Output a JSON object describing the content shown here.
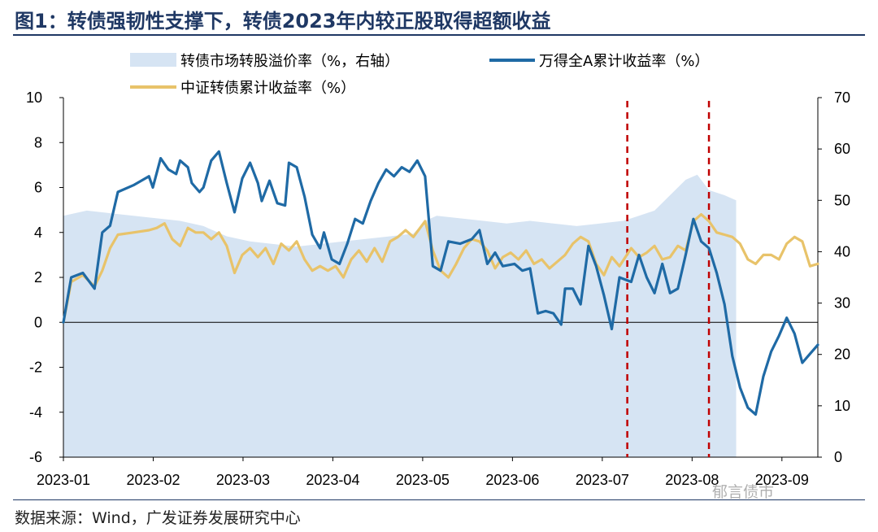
{
  "title": "图1：转债强韧性支撑下，转债2023年内较正股取得超额收益",
  "source": "数据来源：Wind，广发证券发展研究中心",
  "watermark": "郁言债市",
  "colors": {
    "premium": "#d6e4f3",
    "wind_a": "#1f6aa5",
    "csi_cb": "#e8c36a",
    "marker": "#c00000",
    "title": "#1f3864"
  },
  "chart_data": {
    "type": "line",
    "title": "转债强韧性支撑下，转债2023年内较正股取得超额收益",
    "x_tick_labels": [
      "2023-01",
      "2023-02",
      "2023-03",
      "2023-04",
      "2023-05",
      "2023-06",
      "2023-07",
      "2023-08",
      "2023-09"
    ],
    "y_left": {
      "ticks": [
        10,
        8,
        6,
        4,
        2,
        0,
        -2,
        -4,
        -6
      ],
      "ylim": [
        -6,
        10
      ]
    },
    "y_right": {
      "ticks": [
        70,
        60,
        50,
        40,
        30,
        20,
        10,
        0
      ],
      "ylim": [
        0,
        70
      ]
    },
    "vertical_markers_x_index": [
      145,
      166
    ],
    "legend": [
      {
        "label": "转债市场转股溢价率（%，右轴）",
        "series": "premium"
      },
      {
        "label": "万得全A累计收益率（%）",
        "series": "wind_a"
      },
      {
        "label": "中证转债累计收益率（%）",
        "series": "csi_cb"
      }
    ],
    "series": [
      {
        "name": "转债市场转股溢价率（%，右轴）",
        "kind": "area",
        "axis": "right",
        "points": [
          [
            0,
            47
          ],
          [
            6,
            48
          ],
          [
            12,
            47.5
          ],
          [
            18,
            47
          ],
          [
            24,
            46.5
          ],
          [
            30,
            46
          ],
          [
            36,
            45
          ],
          [
            42,
            43
          ],
          [
            48,
            42
          ],
          [
            54,
            41.5
          ],
          [
            60,
            41
          ],
          [
            66,
            41.5
          ],
          [
            72,
            42
          ],
          [
            78,
            42.5
          ],
          [
            84,
            43
          ],
          [
            90,
            43.5
          ],
          [
            93,
            46
          ],
          [
            96,
            47
          ],
          [
            102,
            46.5
          ],
          [
            108,
            46
          ],
          [
            114,
            45.5
          ],
          [
            120,
            46
          ],
          [
            126,
            45.5
          ],
          [
            132,
            45
          ],
          [
            138,
            45.5
          ],
          [
            144,
            46
          ],
          [
            148,
            47
          ],
          [
            152,
            48
          ],
          [
            156,
            51
          ],
          [
            160,
            54
          ],
          [
            163,
            55
          ],
          [
            166,
            52
          ],
          [
            170,
            51
          ],
          [
            173,
            50
          ]
        ]
      },
      {
        "name": "万得全A累计收益率（%）",
        "kind": "line",
        "axis": "left",
        "points": [
          [
            0,
            0
          ],
          [
            2,
            2
          ],
          [
            5,
            2.2
          ],
          [
            8,
            1.5
          ],
          [
            10,
            4
          ],
          [
            12,
            4.3
          ],
          [
            14,
            5.8
          ],
          [
            18,
            6.1
          ],
          [
            22,
            6.5
          ],
          [
            23,
            6
          ],
          [
            25,
            7.3
          ],
          [
            27,
            6.8
          ],
          [
            29,
            6.6
          ],
          [
            30,
            7.2
          ],
          [
            32,
            6.9
          ],
          [
            33,
            6.2
          ],
          [
            35,
            5.8
          ],
          [
            36,
            6
          ],
          [
            38,
            7.2
          ],
          [
            40,
            7.6
          ],
          [
            42,
            6.2
          ],
          [
            44,
            4.9
          ],
          [
            46,
            6.4
          ],
          [
            48,
            7.1
          ],
          [
            50,
            6.2
          ],
          [
            51,
            5.4
          ],
          [
            53,
            6.3
          ],
          [
            55,
            5.3
          ],
          [
            57,
            5.2
          ],
          [
            58,
            7.1
          ],
          [
            60,
            6.9
          ],
          [
            62,
            5.6
          ],
          [
            64,
            3.9
          ],
          [
            66,
            3.3
          ],
          [
            67,
            4
          ],
          [
            69,
            2.8
          ],
          [
            71,
            2.6
          ],
          [
            73,
            3.5
          ],
          [
            75,
            4.6
          ],
          [
            77,
            4.4
          ],
          [
            79,
            5.4
          ],
          [
            81,
            6.2
          ],
          [
            83,
            6.8
          ],
          [
            85,
            6.5
          ],
          [
            87,
            6.9
          ],
          [
            89,
            6.7
          ],
          [
            91,
            7.2
          ],
          [
            93,
            6.5
          ],
          [
            95,
            2.5
          ],
          [
            97,
            2.3
          ],
          [
            99,
            3.6
          ],
          [
            102,
            3.5
          ],
          [
            105,
            3.7
          ],
          [
            107,
            4.1
          ],
          [
            109,
            2.6
          ],
          [
            111,
            3.1
          ],
          [
            113,
            2.5
          ],
          [
            116,
            2.6
          ],
          [
            118,
            2.3
          ],
          [
            120,
            2.4
          ],
          [
            122,
            0.4
          ],
          [
            124,
            0.5
          ],
          [
            126,
            0.4
          ],
          [
            128,
            -0.1
          ],
          [
            129,
            1.5
          ],
          [
            131,
            1.5
          ],
          [
            133,
            0.8
          ],
          [
            135,
            3.4
          ],
          [
            137,
            2.5
          ],
          [
            139,
            1.2
          ],
          [
            141,
            -0.3
          ],
          [
            143,
            2
          ],
          [
            146,
            1.8
          ],
          [
            148,
            3
          ],
          [
            150,
            2
          ],
          [
            152,
            1.3
          ],
          [
            154,
            2.6
          ],
          [
            156,
            1.3
          ],
          [
            158,
            1.5
          ],
          [
            160,
            3
          ],
          [
            162,
            4.6
          ],
          [
            164,
            3.6
          ],
          [
            166,
            3.3
          ],
          [
            168,
            2.2
          ],
          [
            170,
            0.8
          ],
          [
            172,
            -1.5
          ],
          [
            174,
            -2.9
          ],
          [
            176,
            -3.8
          ],
          [
            178,
            -4.1
          ],
          [
            180,
            -2.4
          ],
          [
            182,
            -1.3
          ],
          [
            184,
            -0.6
          ],
          [
            186,
            0.2
          ],
          [
            188,
            -0.5
          ],
          [
            190,
            -1.8
          ],
          [
            192,
            -1.4
          ],
          [
            194,
            -1
          ]
        ]
      },
      {
        "name": "中证转债累计收益率（%）",
        "kind": "line",
        "axis": "left",
        "points": [
          [
            0,
            0
          ],
          [
            2,
            1.8
          ],
          [
            5,
            2.1
          ],
          [
            8,
            1.6
          ],
          [
            10,
            2.3
          ],
          [
            12,
            3.3
          ],
          [
            14,
            3.9
          ],
          [
            18,
            4
          ],
          [
            22,
            4.1
          ],
          [
            24,
            4.2
          ],
          [
            26,
            4.4
          ],
          [
            28,
            3.7
          ],
          [
            30,
            3.4
          ],
          [
            32,
            4.2
          ],
          [
            34,
            4
          ],
          [
            36,
            4
          ],
          [
            38,
            3.7
          ],
          [
            40,
            4
          ],
          [
            42,
            3.4
          ],
          [
            44,
            2.2
          ],
          [
            46,
            3
          ],
          [
            48,
            3.3
          ],
          [
            50,
            2.9
          ],
          [
            52,
            3.3
          ],
          [
            54,
            2.6
          ],
          [
            56,
            3.5
          ],
          [
            58,
            3.2
          ],
          [
            60,
            3.6
          ],
          [
            62,
            2.8
          ],
          [
            64,
            2.3
          ],
          [
            66,
            2.5
          ],
          [
            68,
            2.3
          ],
          [
            70,
            2.5
          ],
          [
            72,
            2
          ],
          [
            74,
            2.8
          ],
          [
            76,
            3.2
          ],
          [
            78,
            2.7
          ],
          [
            80,
            3.3
          ],
          [
            82,
            2.7
          ],
          [
            84,
            3.6
          ],
          [
            86,
            3.8
          ],
          [
            88,
            4.1
          ],
          [
            90,
            3.8
          ],
          [
            93,
            4.5
          ],
          [
            95,
            3.2
          ],
          [
            97,
            2.3
          ],
          [
            99,
            2
          ],
          [
            101,
            2.6
          ],
          [
            103,
            3.3
          ],
          [
            105,
            3.7
          ],
          [
            107,
            3.6
          ],
          [
            109,
            3.2
          ],
          [
            111,
            2.4
          ],
          [
            113,
            2.9
          ],
          [
            115,
            3.1
          ],
          [
            117,
            2.8
          ],
          [
            119,
            3.2
          ],
          [
            121,
            2.6
          ],
          [
            123,
            2.8
          ],
          [
            125,
            2.4
          ],
          [
            127,
            2.7
          ],
          [
            129,
            3
          ],
          [
            131,
            3.5
          ],
          [
            133,
            3.8
          ],
          [
            135,
            3.6
          ],
          [
            137,
            2.6
          ],
          [
            139,
            2.1
          ],
          [
            141,
            2.9
          ],
          [
            143,
            2.5
          ],
          [
            146,
            3.3
          ],
          [
            148,
            2.9
          ],
          [
            150,
            3.1
          ],
          [
            152,
            3.4
          ],
          [
            154,
            2.8
          ],
          [
            156,
            2.9
          ],
          [
            158,
            3.4
          ],
          [
            160,
            3.2
          ],
          [
            162,
            4.5
          ],
          [
            164,
            4.8
          ],
          [
            166,
            4.5
          ],
          [
            168,
            4
          ],
          [
            170,
            3.9
          ],
          [
            172,
            3.8
          ],
          [
            174,
            3.5
          ],
          [
            176,
            2.8
          ],
          [
            178,
            2.6
          ],
          [
            180,
            3
          ],
          [
            182,
            3
          ],
          [
            184,
            2.8
          ],
          [
            186,
            3.5
          ],
          [
            188,
            3.8
          ],
          [
            190,
            3.6
          ],
          [
            192,
            2.5
          ],
          [
            194,
            2.6
          ]
        ]
      }
    ]
  }
}
